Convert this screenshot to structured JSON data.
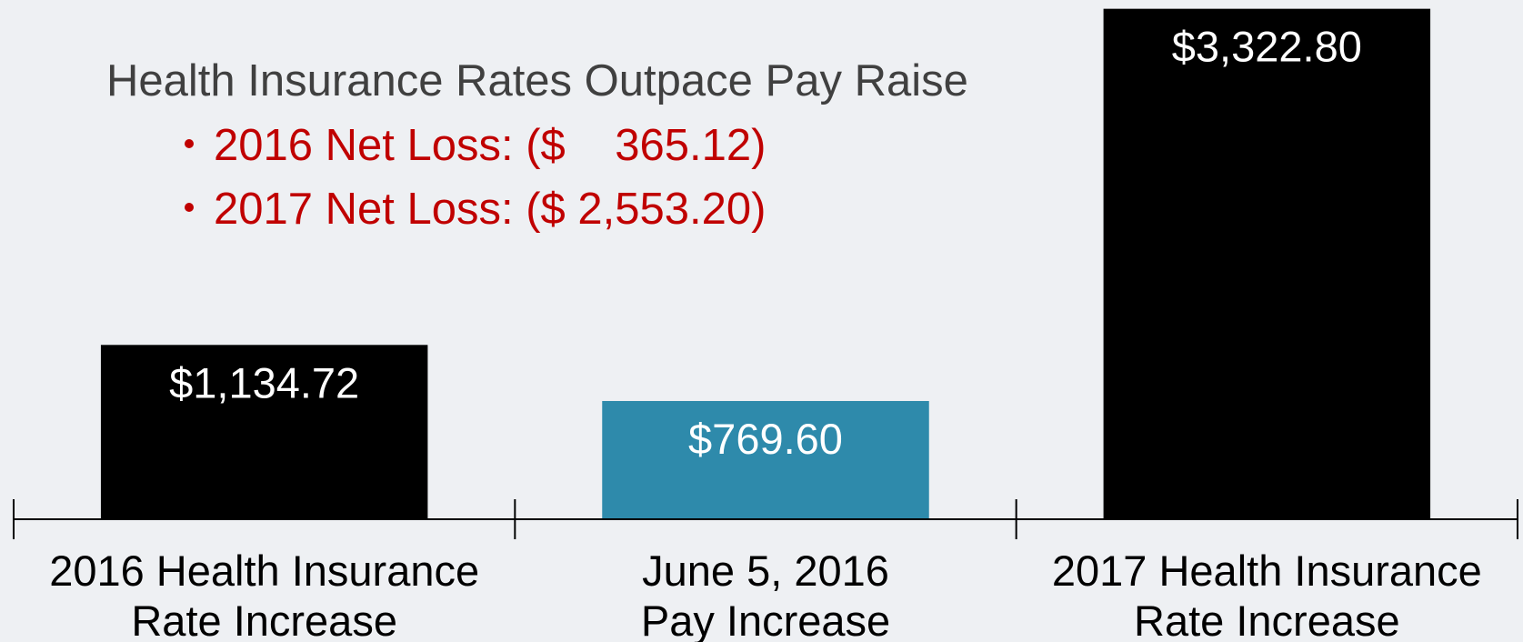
{
  "chart_data": {
    "type": "bar",
    "title": "Health Insurance Rates Outpace Pay Raise",
    "annotations": [
      "2016 Net Loss: ($    365.12)",
      "2017 Net Loss: ($ 2,553.20)"
    ],
    "categories": [
      [
        "2016 Health Insurance",
        "Rate Increase"
      ],
      [
        "June 5, 2016",
        "Pay Increase"
      ],
      [
        "2017 Health Insurance",
        "Rate Increase"
      ]
    ],
    "values": [
      1134.72,
      769.6,
      3322.8
    ],
    "value_labels": [
      "$1,134.72",
      "$769.60",
      "$3,322.80"
    ],
    "colors": [
      "#000000",
      "#2e8aab",
      "#000000"
    ],
    "ylim": [
      0,
      3380
    ]
  }
}
